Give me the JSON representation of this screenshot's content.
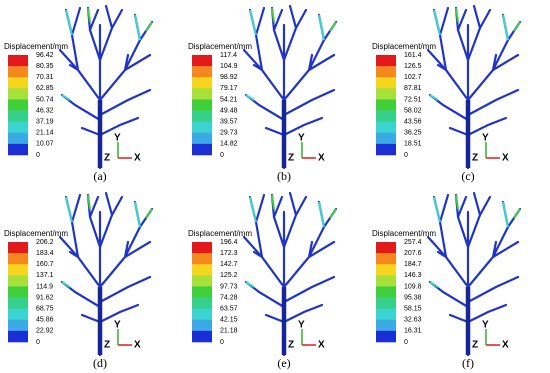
{
  "legend_title": "Displacement/mm",
  "axis_labels": {
    "y": "Y",
    "z": "Z",
    "x": "X"
  },
  "panels": [
    {
      "label": "(a)",
      "ticks": [
        "96.42",
        "80.35",
        "70.31",
        "62.85",
        "50.74",
        "46.32",
        "37.19",
        "21.14",
        "10.07",
        "0"
      ]
    },
    {
      "label": "(b)",
      "ticks": [
        "117.4",
        "104.9",
        "98.92",
        "79.17",
        "54.21",
        "49.48",
        "39.57",
        "29.73",
        "14.82",
        "0"
      ]
    },
    {
      "label": "(c)",
      "ticks": [
        "161.4",
        "126.5",
        "102.7",
        "87.81",
        "72.51",
        "58.02",
        "43.56",
        "36.25",
        "18.51",
        "0"
      ]
    },
    {
      "label": "(d)",
      "ticks": [
        "206.2",
        "183.4",
        "160.7",
        "137.1",
        "114.9",
        "91.62",
        "68.75",
        "45.86",
        "22.92",
        "0"
      ]
    },
    {
      "label": "(e)",
      "ticks": [
        "196.4",
        "172.3",
        "142.7",
        "125.2",
        "97.73",
        "74.28",
        "63.57",
        "42.15",
        "21.18",
        "0"
      ]
    },
    {
      "label": "(f)",
      "ticks": [
        "257.4",
        "207.6",
        "184.7",
        "146.3",
        "109.8",
        "95.38",
        "58.15",
        "32.63",
        "16.31",
        "0"
      ]
    }
  ]
}
